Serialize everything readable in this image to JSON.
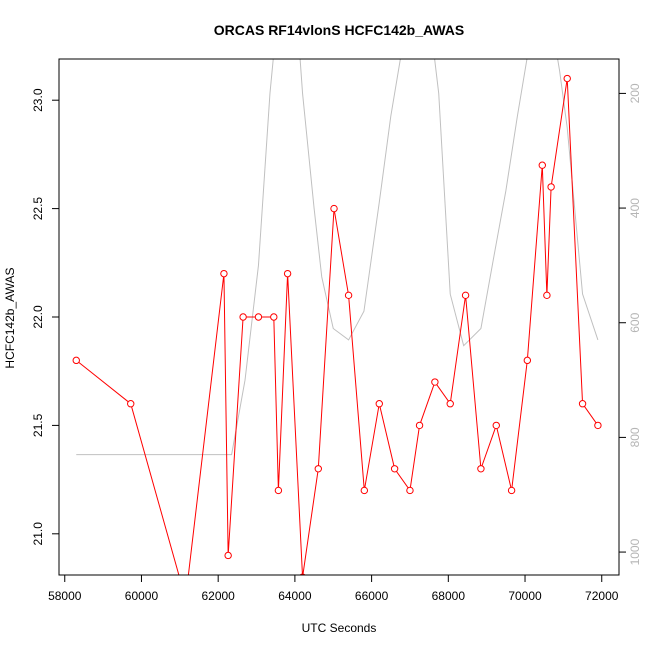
{
  "chart_data": {
    "type": "line",
    "title": "ORCAS RF14vlonS HCFC142b_AWAS",
    "xlabel": "UTC Seconds",
    "ylabel": "HCFC142b_AWAS",
    "xlim": [
      57850,
      72450
    ],
    "ylim": [
      20.81,
      23.19
    ],
    "x_ticks": [
      {
        "value": 58000,
        "label": "58000"
      },
      {
        "value": 60000,
        "label": "60000"
      },
      {
        "value": 62000,
        "label": "62000"
      },
      {
        "value": 64000,
        "label": "64000"
      },
      {
        "value": 66000,
        "label": "66000"
      },
      {
        "value": 68000,
        "label": "68000"
      },
      {
        "value": 70000,
        "label": "70000"
      },
      {
        "value": 72000,
        "label": "72000"
      }
    ],
    "y_ticks": [
      {
        "value": 21.0,
        "label": "21.0"
      },
      {
        "value": 21.5,
        "label": "21.5"
      },
      {
        "value": 22.0,
        "label": "22.0"
      },
      {
        "value": 22.5,
        "label": "22.5"
      },
      {
        "value": 23.0,
        "label": "23.0"
      }
    ],
    "y2lim": [
      1040,
      140
    ],
    "y2_ticks": [
      {
        "value": 200,
        "label": "200"
      },
      {
        "value": 400,
        "label": "400"
      },
      {
        "value": 600,
        "label": "600"
      },
      {
        "value": 800,
        "label": "800"
      },
      {
        "value": 1000,
        "label": "1000"
      }
    ],
    "series": [
      {
        "color": "#ff0000",
        "marker": "open-circle",
        "x": [
          58300,
          59720,
          61150,
          62150,
          62260,
          62650,
          63050,
          63450,
          63570,
          63810,
          64200,
          64610,
          65020,
          65400,
          65810,
          66200,
          66600,
          67000,
          67250,
          67650,
          68050,
          68450,
          68850,
          69250,
          69650,
          70060,
          70450,
          70570,
          70680,
          71100,
          71500,
          71900
        ],
        "y": [
          21.8,
          21.6,
          20.7,
          22.2,
          20.9,
          22.0,
          22.0,
          22.0,
          21.2,
          22.2,
          20.8,
          21.3,
          22.5,
          22.1,
          21.2,
          21.6,
          21.3,
          21.2,
          21.5,
          21.7,
          21.6,
          22.1,
          21.3,
          21.5,
          21.2,
          21.8,
          22.7,
          22.1,
          22.6,
          23.1,
          21.6,
          21.5
        ]
      },
      {
        "color": "#c0c0c0",
        "axis": "right",
        "x": [
          58300,
          62350,
          62700,
          63050,
          63350,
          63550,
          63800,
          64050,
          64200,
          64500,
          64700,
          65000,
          65400,
          65800,
          66200,
          66500,
          66750,
          67000,
          67200,
          67500,
          67750,
          68050,
          68400,
          68850,
          69200,
          69500,
          69800,
          70000,
          70200,
          70400,
          70650,
          70900,
          71100,
          71500,
          71900
        ],
        "y": [
          830,
          830,
          700,
          500,
          200,
          60,
          40,
          60,
          200,
          400,
          520,
          610,
          630,
          580,
          390,
          240,
          140,
          60,
          40,
          60,
          200,
          550,
          640,
          610,
          480,
          370,
          240,
          160,
          80,
          50,
          60,
          160,
          260,
          550,
          630
        ]
      }
    ]
  }
}
